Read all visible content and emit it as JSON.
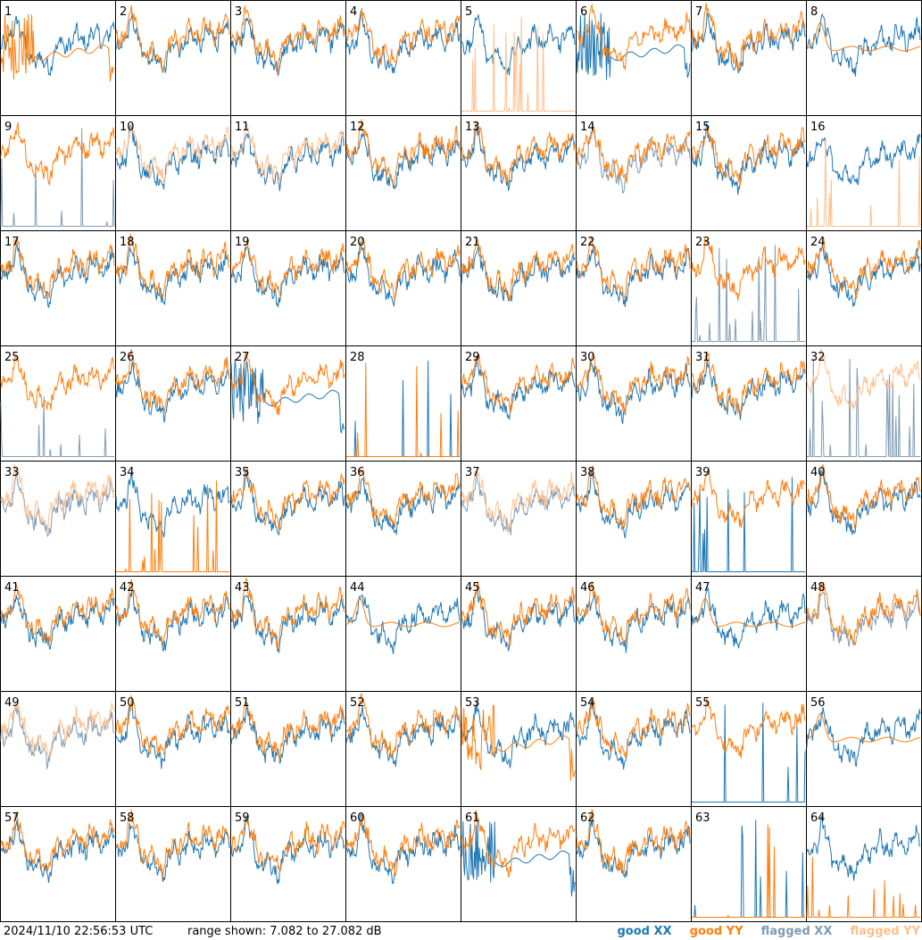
{
  "footer": {
    "timestamp": "2024/11/10 22:56:53 UTC",
    "range_text": "range shown: 7.082 to 27.082 dB",
    "legend": {
      "good_xx": "good XX",
      "good_yy": "good YY",
      "flagged_xx": "flagged XX",
      "flagged_yy": "flagged YY"
    }
  },
  "colors": {
    "good_xx": "#1f77b4",
    "good_yy": "#ff7f0e",
    "flagged_xx": "#7f9bb6",
    "flagged_yy": "#ffbf8c"
  },
  "chart_data": {
    "type": "line",
    "layout": "8x8 small multiples",
    "ylim_db": [
      7.082,
      27.082
    ],
    "series_legend": [
      "good XX",
      "good YY",
      "flagged XX",
      "flagged YY"
    ],
    "panels": [
      {
        "label": "1",
        "xx": "good",
        "yy": "good",
        "shape": "yy-noisy"
      },
      {
        "label": "2",
        "xx": "good",
        "yy": "good",
        "shape": "normal"
      },
      {
        "label": "3",
        "xx": "good",
        "yy": "good",
        "shape": "normal"
      },
      {
        "label": "4",
        "xx": "good",
        "yy": "good",
        "shape": "normal"
      },
      {
        "label": "5",
        "xx": "good",
        "yy": "flagged",
        "shape": "yy-dead"
      },
      {
        "label": "6",
        "xx": "good",
        "yy": "good",
        "shape": "xx-noisy"
      },
      {
        "label": "7",
        "xx": "good",
        "yy": "good",
        "shape": "normal"
      },
      {
        "label": "8",
        "xx": "good",
        "yy": "good",
        "shape": "yy-flat"
      },
      {
        "label": "9",
        "xx": "flagged",
        "yy": "good",
        "shape": "xx-dead"
      },
      {
        "label": "10",
        "xx": "good",
        "yy": "flagged",
        "shape": "normal"
      },
      {
        "label": "11",
        "xx": "good",
        "yy": "flagged",
        "shape": "normal"
      },
      {
        "label": "12",
        "xx": "good",
        "yy": "good",
        "shape": "normal"
      },
      {
        "label": "13",
        "xx": "good",
        "yy": "good",
        "shape": "normal"
      },
      {
        "label": "14",
        "xx": "flagged",
        "yy": "good",
        "shape": "normal"
      },
      {
        "label": "15",
        "xx": "good",
        "yy": "good",
        "shape": "normal"
      },
      {
        "label": "16",
        "xx": "good",
        "yy": "flagged",
        "shape": "yy-dead"
      },
      {
        "label": "17",
        "xx": "good",
        "yy": "good",
        "shape": "normal"
      },
      {
        "label": "18",
        "xx": "good",
        "yy": "good",
        "shape": "normal"
      },
      {
        "label": "19",
        "xx": "good",
        "yy": "good",
        "shape": "normal"
      },
      {
        "label": "20",
        "xx": "good",
        "yy": "good",
        "shape": "normal"
      },
      {
        "label": "21",
        "xx": "good",
        "yy": "good",
        "shape": "normal"
      },
      {
        "label": "22",
        "xx": "good",
        "yy": "good",
        "shape": "normal"
      },
      {
        "label": "23",
        "xx": "flagged",
        "yy": "good",
        "shape": "xx-dead"
      },
      {
        "label": "24",
        "xx": "good",
        "yy": "good",
        "shape": "normal"
      },
      {
        "label": "25",
        "xx": "flagged",
        "yy": "good",
        "shape": "xx-dead"
      },
      {
        "label": "26",
        "xx": "good",
        "yy": "good",
        "shape": "normal"
      },
      {
        "label": "27",
        "xx": "good",
        "yy": "good",
        "shape": "xx-noisy"
      },
      {
        "label": "28",
        "xx": "good",
        "yy": "good",
        "shape": "both-dead"
      },
      {
        "label": "29",
        "xx": "good",
        "yy": "good",
        "shape": "normal"
      },
      {
        "label": "30",
        "xx": "good",
        "yy": "good",
        "shape": "normal"
      },
      {
        "label": "31",
        "xx": "good",
        "yy": "good",
        "shape": "normal"
      },
      {
        "label": "32",
        "xx": "flagged",
        "yy": "flagged",
        "shape": "xx-dead"
      },
      {
        "label": "33",
        "xx": "flagged",
        "yy": "flagged",
        "shape": "normal"
      },
      {
        "label": "34",
        "xx": "good",
        "yy": "good",
        "shape": "yy-dead"
      },
      {
        "label": "35",
        "xx": "good",
        "yy": "good",
        "shape": "normal"
      },
      {
        "label": "36",
        "xx": "good",
        "yy": "good",
        "shape": "normal"
      },
      {
        "label": "37",
        "xx": "flagged",
        "yy": "flagged",
        "shape": "normal"
      },
      {
        "label": "38",
        "xx": "good",
        "yy": "good",
        "shape": "normal"
      },
      {
        "label": "39",
        "xx": "good",
        "yy": "good",
        "shape": "xx-dead"
      },
      {
        "label": "40",
        "xx": "good",
        "yy": "good",
        "shape": "normal"
      },
      {
        "label": "41",
        "xx": "good",
        "yy": "good",
        "shape": "normal"
      },
      {
        "label": "42",
        "xx": "good",
        "yy": "good",
        "shape": "normal"
      },
      {
        "label": "43",
        "xx": "good",
        "yy": "good",
        "shape": "normal"
      },
      {
        "label": "44",
        "xx": "good",
        "yy": "good",
        "shape": "yy-flat"
      },
      {
        "label": "45",
        "xx": "good",
        "yy": "good",
        "shape": "normal"
      },
      {
        "label": "46",
        "xx": "good",
        "yy": "good",
        "shape": "normal"
      },
      {
        "label": "47",
        "xx": "good",
        "yy": "good",
        "shape": "yy-flat"
      },
      {
        "label": "48",
        "xx": "flagged",
        "yy": "good",
        "shape": "normal"
      },
      {
        "label": "49",
        "xx": "flagged",
        "yy": "flagged",
        "shape": "normal"
      },
      {
        "label": "50",
        "xx": "good",
        "yy": "good",
        "shape": "normal"
      },
      {
        "label": "51",
        "xx": "good",
        "yy": "good",
        "shape": "normal"
      },
      {
        "label": "52",
        "xx": "good",
        "yy": "good",
        "shape": "normal"
      },
      {
        "label": "53",
        "xx": "good",
        "yy": "good",
        "shape": "yy-noisy"
      },
      {
        "label": "54",
        "xx": "good",
        "yy": "good",
        "shape": "normal"
      },
      {
        "label": "55",
        "xx": "good",
        "yy": "good",
        "shape": "xx-dead"
      },
      {
        "label": "56",
        "xx": "good",
        "yy": "good",
        "shape": "yy-flat"
      },
      {
        "label": "57",
        "xx": "good",
        "yy": "good",
        "shape": "normal"
      },
      {
        "label": "58",
        "xx": "good",
        "yy": "good",
        "shape": "normal"
      },
      {
        "label": "59",
        "xx": "good",
        "yy": "good",
        "shape": "normal"
      },
      {
        "label": "60",
        "xx": "good",
        "yy": "good",
        "shape": "normal"
      },
      {
        "label": "61",
        "xx": "good",
        "yy": "good",
        "shape": "xx-noisy"
      },
      {
        "label": "62",
        "xx": "good",
        "yy": "good",
        "shape": "normal"
      },
      {
        "label": "63",
        "xx": "good",
        "yy": "good",
        "shape": "both-dead"
      },
      {
        "label": "64",
        "xx": "good",
        "yy": "good",
        "shape": "yy-dead"
      }
    ]
  }
}
